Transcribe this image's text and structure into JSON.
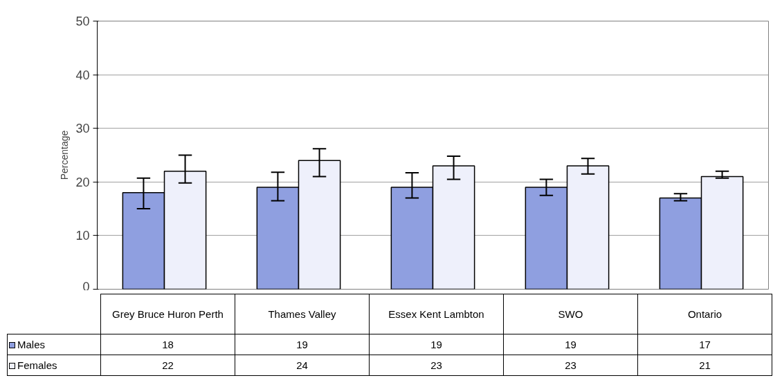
{
  "chart_data": {
    "type": "bar",
    "ylabel": "Percentage",
    "categories": [
      "Grey Bruce Huron Perth",
      "Thames Valley",
      "Essex Kent Lambton",
      "SWO",
      "Ontario"
    ],
    "series": [
      {
        "name": "Males",
        "color": "#8f9fe0",
        "values": [
          18,
          19,
          19,
          19,
          17
        ],
        "errors": [
          [
            15,
            20.7
          ],
          [
            16.5,
            21.8
          ],
          [
            17,
            21.7
          ],
          [
            17.5,
            20.5
          ],
          [
            16.5,
            17.8
          ]
        ]
      },
      {
        "name": "Females",
        "color": "#eef0fb",
        "values": [
          22,
          24,
          23,
          23,
          21
        ],
        "errors": [
          [
            19.8,
            25
          ],
          [
            21,
            26.2
          ],
          [
            20.5,
            24.8
          ],
          [
            21.5,
            24.4
          ],
          [
            20.7,
            22
          ]
        ]
      }
    ],
    "ylim": [
      0,
      50
    ],
    "yticks": [
      0,
      10,
      20,
      30,
      40,
      50
    ],
    "grid": "y",
    "legend": "bottom",
    "data_labels": true
  }
}
